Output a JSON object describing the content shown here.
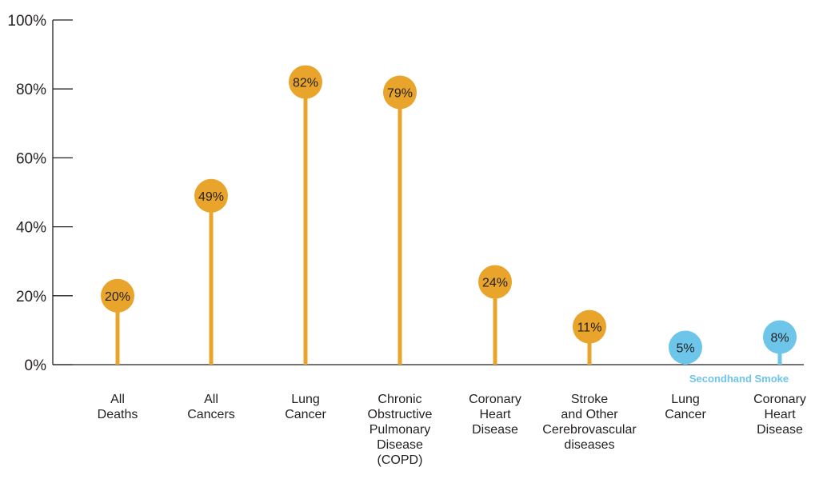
{
  "chart_data": {
    "type": "lollipop",
    "ylim": [
      0,
      100
    ],
    "y_ticks": [
      "0%",
      "20%",
      "40%",
      "60%",
      "80%",
      "100%"
    ],
    "y_tick_values": [
      0,
      20,
      40,
      60,
      80,
      100
    ],
    "categories": [
      [
        "All",
        "Deaths"
      ],
      [
        "All",
        "Cancers"
      ],
      [
        "Lung",
        "Cancer"
      ],
      [
        "Chronic",
        "Obstructive",
        "Pulmonary",
        "Disease",
        "(COPD)"
      ],
      [
        "Coronary",
        "Heart",
        "Disease"
      ],
      [
        "Stroke",
        "and Other",
        "Cerebrovascular",
        "diseases"
      ],
      [
        "Lung",
        "Cancer"
      ],
      [
        "Coronary",
        "Heart",
        "Disease"
      ]
    ],
    "values": [
      20,
      49,
      82,
      79,
      24,
      11,
      5,
      8
    ],
    "data_labels": [
      "20%",
      "49%",
      "82%",
      "79%",
      "24%",
      "11%",
      "5%",
      "8%"
    ],
    "group": [
      "smoking",
      "smoking",
      "smoking",
      "smoking",
      "smoking",
      "smoking",
      "secondhand",
      "secondhand"
    ],
    "group_label": "Secondhand Smoke",
    "colors": {
      "smoking": "#e8a42b",
      "secondhand": "#6ec5ea",
      "axis": "#231f20"
    }
  }
}
